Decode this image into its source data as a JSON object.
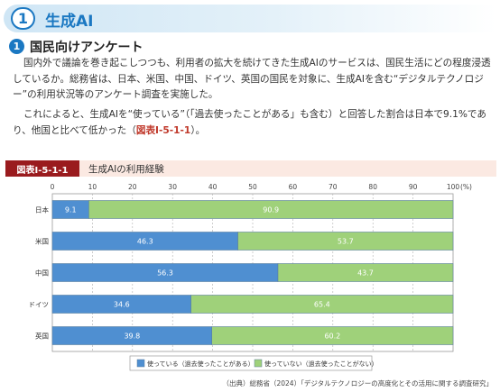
{
  "section": {
    "number": "1",
    "title": "生成AI"
  },
  "subsection": {
    "number": "1",
    "title": "国民向けアンケート"
  },
  "paragraphs": {
    "p1": "国内外で議論を巻き起こしつつも、利用者の拡大を続けてきた生成AIのサービスは、国民生活にどの程度浸透しているか。総務省は、日本、米国、中国、ドイツ、英国の国民を対象に、生成AIを含む“デジタルテクノロジー”の利用状況等のアンケート調査を実施した。",
    "p2_text": "これによると、生成AIを“使っている”（「過去使ったことがある」も含む）と回答した割合は日本で9.1%であり、他国と比べて低かった（",
    "p2_ref": "図表Ⅰ-5-1-1",
    "p2_end": "）。"
  },
  "figure": {
    "label": "図表Ⅰ-5-1-1",
    "title": "生成AIの利用経験"
  },
  "colors": {
    "used": "#4f8fd1",
    "not_used": "#9fd17a",
    "accent": "#1b78c2",
    "figure_label": "#9a1b1e"
  },
  "chart_data": {
    "type": "bar",
    "orientation": "horizontal",
    "stacked": true,
    "categories": [
      "日本",
      "米国",
      "中国",
      "ドイツ",
      "英国"
    ],
    "series": [
      {
        "name": "使っている（過去使ったことがある）",
        "values": [
          9.1,
          46.3,
          56.3,
          34.6,
          39.8
        ]
      },
      {
        "name": "使っていない（過去使ったことがない）",
        "values": [
          90.9,
          53.7,
          43.7,
          65.4,
          60.2
        ]
      }
    ],
    "x_ticks": [
      "0",
      "10",
      "20",
      "30",
      "40",
      "50",
      "60",
      "70",
      "80",
      "90",
      "100"
    ],
    "x_unit": "(%)",
    "xlim": [
      0,
      100
    ],
    "grid": true,
    "legend": "bottom"
  },
  "source": "（出典）総務省（2024）「デジタルテクノロジーの高度化とその活用に関する調査研究」"
}
